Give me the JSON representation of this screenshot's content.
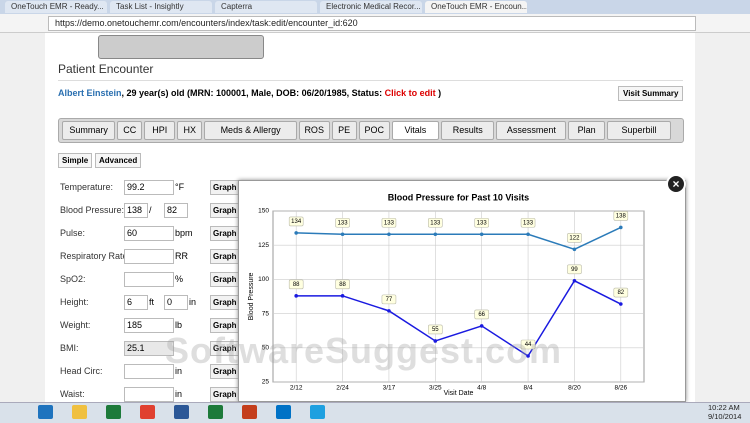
{
  "browser": {
    "tabs": [
      "OneTouch EMR - Ready...",
      "Task List - Insightly",
      "Capterra",
      "Electronic Medical Recor...",
      "OneTouch EMR - Encoun..."
    ],
    "url": "https://demo.onetouchemr.com/encounters/index/task:edit/encounter_id:620"
  },
  "page": {
    "title": "Patient Encounter",
    "patient_name": "Albert  Einstein",
    "patient_details": ", 29 year(s) old (MRN: 100001, Male, DOB: 06/20/1985, Status:",
    "status_link": "Click to edit",
    "status_close": ")",
    "visit_summary": "Visit Summary",
    "tabs": [
      {
        "label": "Summary"
      },
      {
        "label": "CC"
      },
      {
        "label": "HPI"
      },
      {
        "label": "HX"
      },
      {
        "label": "Meds & Allergy"
      },
      {
        "label": "ROS"
      },
      {
        "label": "PE"
      },
      {
        "label": "POC"
      },
      {
        "label": "Vitals",
        "active": true
      },
      {
        "label": "Results"
      },
      {
        "label": "Assessment"
      },
      {
        "label": "Plan"
      },
      {
        "label": "Superbill"
      }
    ],
    "mode_buttons": [
      "Simple",
      "Advanced"
    ],
    "graph_button": "Graph",
    "vitals": [
      {
        "label": "Temperature:",
        "inputs": [
          {
            "value": "99.2",
            "suffix": "°F"
          }
        ]
      },
      {
        "label": "Blood Pressure:",
        "inputs": [
          {
            "value": "138",
            "suffix": "/"
          },
          {
            "value": "82"
          }
        ]
      },
      {
        "label": "Pulse:",
        "inputs": [
          {
            "value": "60",
            "suffix": "bpm"
          }
        ]
      },
      {
        "label": "Respiratory Rate:",
        "inputs": [
          {
            "suffix": "RR"
          }
        ]
      },
      {
        "label": "SpO2:",
        "inputs": [
          {
            "suffix": "%"
          }
        ]
      },
      {
        "label": "Height:",
        "inputs": [
          {
            "value": "6",
            "suffix": "ft"
          },
          {
            "value": "0",
            "suffix": "in"
          }
        ]
      },
      {
        "label": "Weight:",
        "inputs": [
          {
            "value": "185",
            "suffix": "lb"
          }
        ]
      },
      {
        "label": "BMI:",
        "inputs": [
          {
            "value": "25.1"
          }
        ]
      },
      {
        "label": "Head Circ:",
        "inputs": [
          {
            "suffix": "in"
          }
        ]
      },
      {
        "label": "Waist:",
        "inputs": [
          {
            "suffix": "in"
          }
        ]
      }
    ]
  },
  "chart_data": {
    "type": "line",
    "title": "Blood Pressure for Past 10 Visits",
    "x_label": "Visit Date",
    "y_label": "Blood Pressure",
    "categories": [
      "2/12",
      "2/24",
      "3/17",
      "3/25",
      "4/8",
      "8/4",
      "8/20",
      "8/26"
    ],
    "series": [
      {
        "color": "#2b7bb9",
        "values": [
          134,
          133,
          133,
          133,
          133,
          133,
          122,
          138
        ]
      },
      {
        "color": "#1a1ae0",
        "values": [
          88,
          88,
          77,
          55,
          66,
          44,
          99,
          82
        ]
      }
    ],
    "ylim": [
      25,
      150
    ],
    "yticks": [
      25,
      50,
      75,
      100,
      125,
      150
    ],
    "grid": true
  },
  "watermark": "SoftwareSuggest.com",
  "taskbar": {
    "time": "10:22 AM",
    "date": "9/10/2014"
  }
}
